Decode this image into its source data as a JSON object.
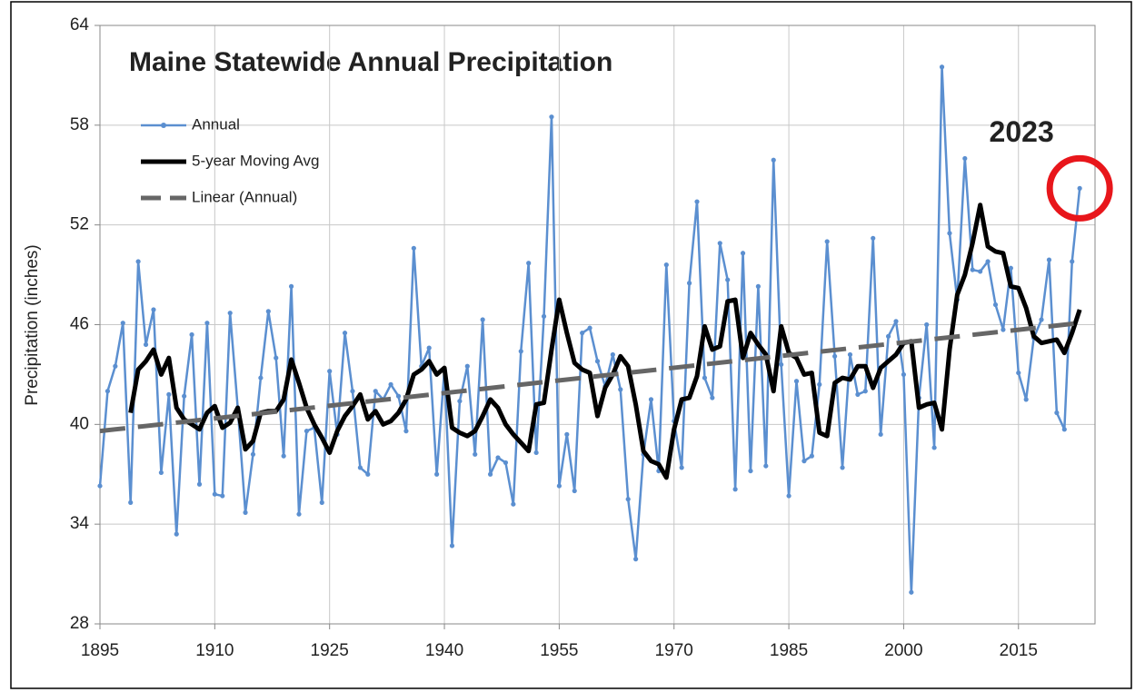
{
  "chart_data": {
    "type": "line",
    "title": "Maine Statewide Annual Precipitation",
    "y_label": "Precipitation (inches)",
    "annotation": "2023",
    "x": [
      1895,
      1896,
      1897,
      1898,
      1899,
      1900,
      1901,
      1902,
      1903,
      1904,
      1905,
      1906,
      1907,
      1908,
      1909,
      1910,
      1911,
      1912,
      1913,
      1914,
      1915,
      1916,
      1917,
      1918,
      1919,
      1920,
      1921,
      1922,
      1923,
      1924,
      1925,
      1926,
      1927,
      1928,
      1929,
      1930,
      1931,
      1932,
      1933,
      1934,
      1935,
      1936,
      1937,
      1938,
      1939,
      1940,
      1941,
      1942,
      1943,
      1944,
      1945,
      1946,
      1947,
      1948,
      1949,
      1950,
      1951,
      1952,
      1953,
      1954,
      1955,
      1956,
      1957,
      1958,
      1959,
      1960,
      1961,
      1962,
      1963,
      1964,
      1965,
      1966,
      1967,
      1968,
      1969,
      1970,
      1971,
      1972,
      1973,
      1974,
      1975,
      1976,
      1977,
      1978,
      1979,
      1980,
      1981,
      1982,
      1983,
      1984,
      1985,
      1986,
      1987,
      1988,
      1989,
      1990,
      1991,
      1992,
      1993,
      1994,
      1995,
      1996,
      1997,
      1998,
      1999,
      2000,
      2001,
      2002,
      2003,
      2004,
      2005,
      2006,
      2007,
      2008,
      2009,
      2010,
      2011,
      2012,
      2013,
      2014,
      2015,
      2016,
      2017,
      2018,
      2019,
      2020,
      2021,
      2022,
      2023
    ],
    "series": [
      {
        "name": "Annual",
        "color": "#5b8fd0",
        "markers": true,
        "values": [
          36.3,
          42,
          43.5,
          46.1,
          35.3,
          49.8,
          44.8,
          46.9,
          37.1,
          41.8,
          33.4,
          41.7,
          45.4,
          36.4,
          46.1,
          35.8,
          35.7,
          46.7,
          41,
          34.7,
          38.2,
          42.8,
          46.8,
          44,
          38.1,
          48.3,
          34.6,
          39.6,
          39.8,
          35.3,
          43.2,
          39.4,
          45.5,
          42,
          37.4,
          37,
          42,
          41.5,
          42.4,
          41.7,
          39.6,
          50.6,
          43.5,
          44.6,
          37,
          43.3,
          32.7,
          41.4,
          43.5,
          38.2,
          46.3,
          37,
          38,
          37.7,
          35.2,
          44.4,
          49.7,
          38.3,
          46.5,
          58.5,
          36.3,
          39.4,
          36,
          45.5,
          45.8,
          43.8,
          42.3,
          44.2,
          42.1,
          35.5,
          31.9,
          38.2,
          41.5,
          37.2,
          49.6,
          40.2,
          37.4,
          48.5,
          53.4,
          42.8,
          41.6,
          50.9,
          48.7,
          36.1,
          50.3,
          37.2,
          48.3,
          37.5,
          55.9,
          43.6,
          35.7,
          42.6,
          37.8,
          38.1,
          42.4,
          51,
          44.1,
          37.4,
          44.2,
          41.8,
          42,
          51.2,
          39.4,
          45.3,
          46.2,
          43,
          29.9,
          41.6,
          46,
          38.6,
          61.5,
          51.5,
          47.5,
          56,
          49.3,
          49.2,
          49.8,
          47.2,
          45.7,
          49.4,
          43.1,
          41.5,
          45.2,
          46.3,
          49.9,
          40.7,
          39.7,
          49.8,
          54.2
        ]
      },
      {
        "name": "5-year Moving Avg",
        "color": "#000000",
        "width": 5,
        "values": [
          null,
          null,
          null,
          null,
          40.7,
          43.3,
          43.8,
          44.5,
          43,
          44,
          41,
          40.3,
          40,
          39.7,
          40.7,
          41.1,
          39.8,
          40.1,
          41,
          38.5,
          39,
          40.7,
          40.8,
          40.8,
          41.5,
          43.9,
          42.5,
          41,
          40,
          39.2,
          38.3,
          39.6,
          40.5,
          41.1,
          41.8,
          40.3,
          40.8,
          40,
          40.2,
          40.7,
          41.5,
          43,
          43.3,
          43.8,
          43,
          43.4,
          39.8,
          39.5,
          39.3,
          39.6,
          40.5,
          41.5,
          41,
          40,
          39.4,
          38.9,
          38.4,
          41.2,
          41.3,
          44.5,
          47.5,
          45.5,
          43.7,
          43.3,
          43.1,
          40.5,
          42.2,
          43,
          44.1,
          43.5,
          41.2,
          38.4,
          37.8,
          37.6,
          36.8,
          39.7,
          41.5,
          41.6,
          42.9,
          45.9,
          44.5,
          44.7,
          47.4,
          47.5,
          44,
          45.5,
          44.8,
          44.2,
          42,
          45.9,
          44.3,
          44,
          43,
          43.1,
          39.5,
          39.3,
          42.5,
          42.8,
          42.7,
          43.5,
          43.5,
          42.2,
          43.4,
          43.8,
          44.2,
          44.9,
          45,
          41,
          41.2,
          41.3,
          39.7,
          44.5,
          47.8,
          49,
          50.9,
          53.2,
          50.7,
          50.4,
          50.3,
          48.3,
          48.2,
          47,
          45.3,
          44.9,
          45,
          45.1,
          44.3,
          45.5,
          46.9
        ]
      },
      {
        "name": "Linear (Annual)",
        "color": "#666666",
        "width": 5,
        "dashed": true,
        "x": [
          1895,
          2023
        ],
        "values": [
          39.6,
          46.1
        ]
      }
    ],
    "xlim": [
      1895,
      2025
    ],
    "xticks": [
      1895,
      1910,
      1925,
      1940,
      1955,
      1970,
      1985,
      2000,
      2015
    ],
    "ylim": [
      28,
      64
    ],
    "yticks": [
      28,
      34,
      40,
      46,
      52,
      58,
      64
    ],
    "grid": true,
    "legend": "upper left",
    "annotation_color": "#e8161b"
  }
}
